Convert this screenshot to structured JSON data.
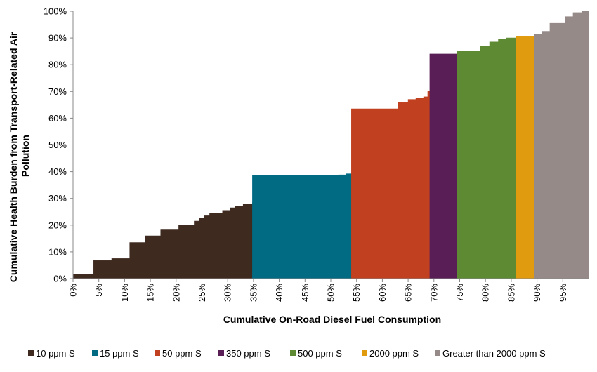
{
  "chart_data": {
    "type": "area",
    "title": "",
    "xlabel": "Cumulative On-Road Diesel Fuel Consumption",
    "ylabel_lines": [
      "Cumulative Health Burden from Transport-Related Air",
      "Pollution"
    ],
    "x_range": [
      0,
      100
    ],
    "y_range": [
      0,
      100
    ],
    "x_ticks": [
      "0%",
      "5%",
      "10%",
      "15%",
      "20%",
      "25%",
      "30%",
      "35%",
      "40%",
      "45%",
      "50%",
      "55%",
      "60%",
      "65%",
      "70%",
      "75%",
      "80%",
      "85%",
      "90%",
      "95%"
    ],
    "y_ticks": [
      "0%",
      "10%",
      "20%",
      "30%",
      "40%",
      "50%",
      "60%",
      "70%",
      "80%",
      "90%",
      "100%"
    ],
    "legend_position": "bottom",
    "series": [
      {
        "name": "10 ppm S",
        "color": "#3f2a20",
        "points": [
          [
            0,
            1.5
          ],
          [
            4,
            1.5
          ],
          [
            4,
            6.8
          ],
          [
            7.5,
            6.8
          ],
          [
            7.5,
            7.5
          ],
          [
            11,
            7.5
          ],
          [
            11,
            13.5
          ],
          [
            14,
            13.5
          ],
          [
            14,
            16
          ],
          [
            17,
            16
          ],
          [
            17,
            18.5
          ],
          [
            20.5,
            18.5
          ],
          [
            20.5,
            20
          ],
          [
            23.5,
            20
          ],
          [
            23.5,
            21.5
          ],
          [
            24.5,
            21.5
          ],
          [
            24.5,
            22.5
          ],
          [
            25.5,
            22.5
          ],
          [
            25.5,
            23.5
          ],
          [
            26.5,
            23.5
          ],
          [
            26.5,
            24.5
          ],
          [
            29,
            24.5
          ],
          [
            29,
            25.5
          ],
          [
            30.5,
            25.5
          ],
          [
            30.5,
            26.5
          ],
          [
            31.5,
            26.5
          ],
          [
            31.5,
            27.2
          ],
          [
            33,
            27.2
          ],
          [
            33,
            28
          ],
          [
            34.8,
            28
          ],
          [
            34.8,
            28.5
          ]
        ]
      },
      {
        "name": "15 ppm S",
        "color": "#006b83",
        "points": [
          [
            34.8,
            38.5
          ],
          [
            51.5,
            38.5
          ],
          [
            51.5,
            38.8
          ],
          [
            53,
            38.8
          ],
          [
            53,
            39.2
          ],
          [
            54,
            39.2
          ]
        ]
      },
      {
        "name": "50 ppm S",
        "color": "#c0401f",
        "points": [
          [
            54,
            63.5
          ],
          [
            63,
            63.5
          ],
          [
            63,
            66
          ],
          [
            65,
            66
          ],
          [
            65,
            67
          ],
          [
            66.5,
            67
          ],
          [
            66.5,
            67.5
          ],
          [
            68,
            67.5
          ],
          [
            68,
            68
          ],
          [
            68.8,
            68
          ],
          [
            68.8,
            70
          ],
          [
            69.2,
            70
          ]
        ]
      },
      {
        "name": "350 ppm S",
        "color": "#5a1e57",
        "points": [
          [
            69.2,
            84
          ],
          [
            74.5,
            84
          ]
        ]
      },
      {
        "name": "500 ppm S",
        "color": "#5d8a33",
        "points": [
          [
            74.5,
            85
          ],
          [
            79,
            85
          ],
          [
            79,
            87
          ],
          [
            80.8,
            87
          ],
          [
            80.8,
            88.5
          ],
          [
            82.5,
            88.5
          ],
          [
            82.5,
            89.5
          ],
          [
            84,
            89.5
          ],
          [
            84,
            90
          ],
          [
            86,
            90
          ]
        ]
      },
      {
        "name": "2000 ppm S",
        "color": "#e09b0f",
        "points": [
          [
            86,
            90.5
          ],
          [
            89.5,
            90.5
          ]
        ]
      },
      {
        "name": "Greater than 2000 ppm S",
        "color": "#968a88",
        "points": [
          [
            89.5,
            91.5
          ],
          [
            91,
            91.5
          ],
          [
            91,
            92.5
          ],
          [
            92.5,
            92.5
          ],
          [
            92.5,
            95.5
          ],
          [
            95.5,
            95.5
          ],
          [
            95.5,
            98
          ],
          [
            97,
            98
          ],
          [
            97,
            99.5
          ],
          [
            98.8,
            99.5
          ],
          [
            98.8,
            100
          ],
          [
            100,
            100
          ]
        ]
      }
    ]
  }
}
